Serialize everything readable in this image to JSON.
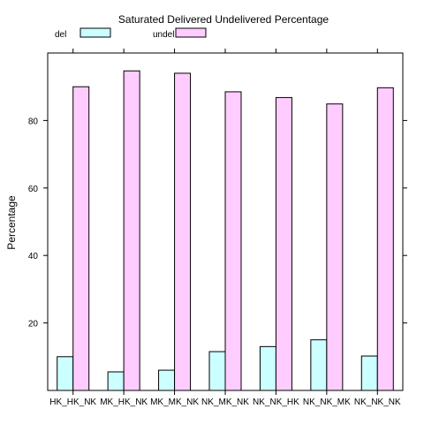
{
  "chart_data": {
    "type": "bar",
    "title": "Saturated Delivered Undelivered Percentage",
    "xlabel": "",
    "ylabel": "Percentage",
    "categories": [
      "HK_HK_NK",
      "MK_HK_NK",
      "MK_MK_NK",
      "NK_MK_NK",
      "NK_NK_HK",
      "NK_NK_MK",
      "NK_NK_NK"
    ],
    "series": [
      {
        "name": "del",
        "values": [
          10,
          5.5,
          6,
          11.5,
          13,
          15,
          10.2
        ],
        "color": "#ccffff"
      },
      {
        "name": "undel",
        "values": [
          90,
          94.7,
          94,
          88.5,
          86.8,
          84.9,
          89.7
        ],
        "color": "#ffccff"
      }
    ],
    "ylim": [
      0,
      100
    ],
    "yticks": [
      20,
      40,
      60,
      80
    ],
    "grid": false,
    "legend_position": "top"
  }
}
